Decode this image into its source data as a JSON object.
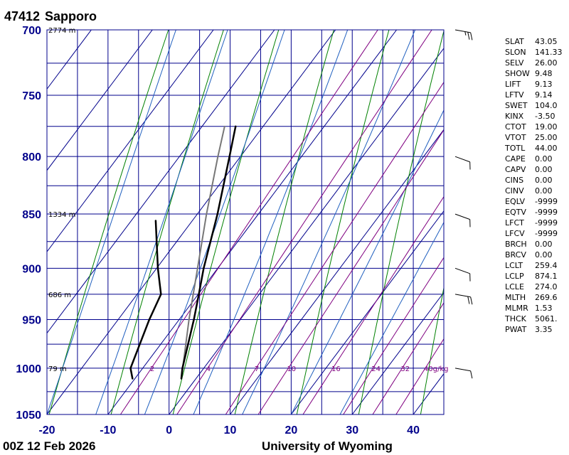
{
  "header": {
    "station_id": "47412",
    "station_name": "Sapporo"
  },
  "footer": {
    "time_label": "00Z 12 Feb 2026",
    "source": "University of Wyoming"
  },
  "colors": {
    "grid": "#00008b",
    "isotherm": "#00008b",
    "dry_adiabat": "#008000",
    "moist_adiabat": "#1f5fbf",
    "mixing_ratio": "#800080",
    "temperature": "#000000",
    "dewpoint": "#000000",
    "parcel": "#777777"
  },
  "chart_data": {
    "type": "skew-t",
    "x_axis": {
      "range": [
        -20,
        45
      ],
      "ticks": [
        "-20",
        "-10",
        "0",
        "10",
        "20",
        "30",
        "40"
      ]
    },
    "y_axis": {
      "range": [
        700,
        1050
      ],
      "scale": "log",
      "ticks": [
        "700",
        "750",
        "800",
        "850",
        "900",
        "950",
        "1000",
        "1050"
      ]
    },
    "height_labels": [
      {
        "p": 700,
        "text": "2774 m"
      },
      {
        "p": 850,
        "text": "1334 m"
      },
      {
        "p": 925,
        "text": "686 m"
      },
      {
        "p": 1000,
        "text": "79 m"
      }
    ],
    "mixing_ratio_labels": [
      {
        "w": 2,
        "text": "2"
      },
      {
        "w": 4,
        "text": "4"
      },
      {
        "w": 7,
        "text": "7"
      },
      {
        "w": 10,
        "text": "10"
      },
      {
        "w": 16,
        "text": "16"
      },
      {
        "w": 24,
        "text": "24"
      },
      {
        "w": 32,
        "text": "32"
      },
      {
        "w": 40,
        "text": "40g/kg"
      }
    ],
    "temperature_profile": [
      {
        "p": 1011,
        "t": -2.4
      },
      {
        "p": 1000,
        "t": -3.5
      },
      {
        "p": 950,
        "t": -7.6
      },
      {
        "p": 925,
        "t": -9.9
      },
      {
        "p": 900,
        "t": -12.3
      },
      {
        "p": 850,
        "t": -16.7
      },
      {
        "p": 800,
        "t": -21.8
      },
      {
        "p": 775,
        "t": -24.5
      }
    ],
    "dewpoint_profile": [
      {
        "p": 1011,
        "t": -10.4
      },
      {
        "p": 1000,
        "t": -12.0
      },
      {
        "p": 950,
        "t": -14.9
      },
      {
        "p": 925,
        "t": -16.1
      },
      {
        "p": 900,
        "t": -19.8
      },
      {
        "p": 856,
        "t": -26.0
      }
    ],
    "parcel_path": [
      {
        "p": 1011,
        "t": -2.4
      },
      {
        "p": 950,
        "t": -8.4
      },
      {
        "p": 900,
        "t": -13.3
      },
      {
        "p": 850,
        "t": -18.5
      },
      {
        "p": 800,
        "t": -23.7
      },
      {
        "p": 775,
        "t": -26.3
      }
    ],
    "wind_barbs": [
      {
        "p": 700,
        "dir": 290,
        "speed_kt": 25
      },
      {
        "p": 800,
        "dir": 300,
        "speed_kt": 10
      },
      {
        "p": 850,
        "dir": 300,
        "speed_kt": 10
      },
      {
        "p": 900,
        "dir": 300,
        "speed_kt": 10
      },
      {
        "p": 925,
        "dir": 290,
        "speed_kt": 20
      },
      {
        "p": 1000,
        "dir": 290,
        "speed_kt": 10
      }
    ]
  },
  "indices": [
    {
      "name": "SLAT",
      "value": "43.05"
    },
    {
      "name": "SLON",
      "value": "141.33"
    },
    {
      "name": "SELV",
      "value": "26.00"
    },
    {
      "name": "SHOW",
      "value": "9.48"
    },
    {
      "name": "LIFT",
      "value": "9.13"
    },
    {
      "name": "LFTV",
      "value": "9.14"
    },
    {
      "name": "SWET",
      "value": "104.0"
    },
    {
      "name": "KINX",
      "value": "-3.50"
    },
    {
      "name": "CTOT",
      "value": "19.00"
    },
    {
      "name": "VTOT",
      "value": "25.00"
    },
    {
      "name": "TOTL",
      "value": "44.00"
    },
    {
      "name": "CAPE",
      "value": "0.00"
    },
    {
      "name": "CAPV",
      "value": "0.00"
    },
    {
      "name": "CINS",
      "value": "0.00"
    },
    {
      "name": "CINV",
      "value": "0.00"
    },
    {
      "name": "EQLV",
      "value": "-9999"
    },
    {
      "name": "EQTV",
      "value": "-9999"
    },
    {
      "name": "LFCT",
      "value": "-9999"
    },
    {
      "name": "LFCV",
      "value": "-9999"
    },
    {
      "name": "BRCH",
      "value": "0.00"
    },
    {
      "name": "BRCV",
      "value": "0.00"
    },
    {
      "name": "LCLT",
      "value": "259.4"
    },
    {
      "name": "LCLP",
      "value": "874.1"
    },
    {
      "name": "LCLE",
      "value": "274.0"
    },
    {
      "name": "MLTH",
      "value": "269.6"
    },
    {
      "name": "MLMR",
      "value": "1.53"
    },
    {
      "name": "THCK",
      "value": "5061."
    },
    {
      "name": "PWAT",
      "value": "3.35"
    }
  ]
}
